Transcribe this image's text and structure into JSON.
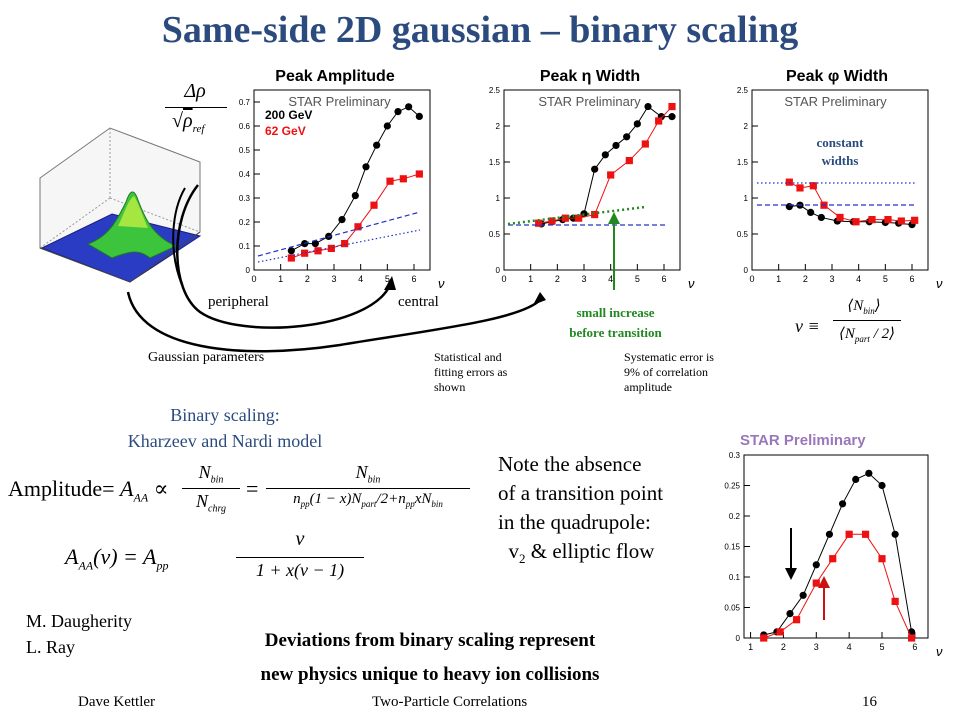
{
  "title": "Same-side 2D gaussian – binary scaling",
  "panels": {
    "amp_title": "Peak Amplitude",
    "eta_title": "Peak η Width",
    "phi_title": "Peak φ Width",
    "star": "STAR Preliminary",
    "star_quad": "STAR Preliminary",
    "legend_200": "200 GeV",
    "legend_62": "62 GeV",
    "nu_label": "ν",
    "constant_widths_1": "constant",
    "constant_widths_2": "widths"
  },
  "labels": {
    "peripheral": "peripheral",
    "central": "central",
    "gaussian_parameters": "Gaussian parameters",
    "small_increase_1": "small increase",
    "small_increase_2": "before transition",
    "stat_errors_1": "Statistical and",
    "stat_errors_2": "fitting errors as",
    "stat_errors_3": "shown",
    "sys_error_1": "Systematic error is",
    "sys_error_2": "9% of correlation",
    "sys_error_3": "amplitude",
    "binary_1": "Binary scaling:",
    "binary_2": "Kharzeev and Nardi model",
    "note_1": "Note the absence",
    "note_2": "of a transition point",
    "note_3": "in the quadrupole:",
    "note_4": "v",
    "note_4_sub": "2",
    "note_4_rest": " & elliptic flow",
    "authors_1": "M. Daugherity",
    "authors_2": "L. Ray",
    "deviations_1": "Deviations from binary scaling represent",
    "deviations_2": "new physics unique to heavy ion collisions"
  },
  "formulas": {
    "drho_num": "Δρ",
    "drho_den": "ρ",
    "drho_sub": "ref",
    "amplitude": "Amplitude",
    "A_AA": "A",
    "A_sub": "AA",
    "N_bin": "N",
    "bin": "bin",
    "N_chrg": "chrg",
    "n_pp": "n",
    "pp": "pp",
    "part": "part",
    "nu_def": "ν ≡",
    "aa_nu": "(ν) = A",
    "x_text": "(1 − x)",
    "den_full": "1 + x(ν − 1)"
  },
  "footer": {
    "author": "Dave Kettler",
    "talk": "Two-Particle Correlations",
    "page": "16"
  },
  "colors": {
    "title": "#2b4b7e",
    "series_200": "#000000",
    "series_62": "#ee1111",
    "guide": "#2233cc",
    "green": "#228822",
    "accent_text": "#2b4b7e"
  },
  "chart_data": [
    {
      "type": "scatter",
      "title": "Peak Amplitude",
      "xlabel": "ν",
      "xlim": [
        0,
        6.6
      ],
      "ylim": [
        0,
        0.75
      ],
      "xticks": [
        0,
        1,
        2,
        3,
        4,
        5,
        6
      ],
      "yticks": [
        0,
        0.1,
        0.2,
        0.3,
        0.4,
        0.5,
        0.6,
        0.7
      ],
      "series": [
        {
          "name": "200 GeV",
          "x": [
            1.4,
            1.9,
            2.3,
            2.8,
            3.3,
            3.8,
            4.2,
            4.6,
            5.0,
            5.4,
            5.8,
            6.2
          ],
          "y": [
            0.08,
            0.11,
            0.11,
            0.14,
            0.21,
            0.31,
            0.43,
            0.52,
            0.6,
            0.66,
            0.68,
            0.64
          ]
        },
        {
          "name": "62 GeV",
          "x": [
            1.4,
            1.9,
            2.4,
            2.9,
            3.4,
            3.9,
            4.5,
            5.1,
            5.6,
            6.2
          ],
          "y": [
            0.05,
            0.07,
            0.08,
            0.09,
            0.11,
            0.18,
            0.27,
            0.37,
            0.38,
            0.4
          ]
        }
      ]
    },
    {
      "type": "scatter",
      "title": "Peak η Width",
      "xlabel": "ν",
      "xlim": [
        0,
        6.6
      ],
      "ylim": [
        0,
        2.5
      ],
      "xticks": [
        0,
        1,
        2,
        3,
        4,
        5,
        6
      ],
      "yticks": [
        0,
        0.5,
        1,
        1.5,
        2,
        2.5
      ],
      "series": [
        {
          "name": "200 GeV",
          "x": [
            1.4,
            1.8,
            2.2,
            2.6,
            3.0,
            3.4,
            3.8,
            4.2,
            4.6,
            5.0,
            5.4,
            5.9,
            6.3
          ],
          "y": [
            0.64,
            0.67,
            0.7,
            0.72,
            0.78,
            1.4,
            1.6,
            1.73,
            1.85,
            2.03,
            2.27,
            2.13,
            2.13
          ]
        },
        {
          "name": "62 GeV",
          "x": [
            1.3,
            1.8,
            2.3,
            2.8,
            3.4,
            4.0,
            4.7,
            5.3,
            5.8,
            6.3
          ],
          "y": [
            0.65,
            0.68,
            0.72,
            0.72,
            0.77,
            1.32,
            1.52,
            1.75,
            2.07,
            2.27
          ]
        }
      ]
    },
    {
      "type": "scatter",
      "title": "Peak φ Width",
      "xlabel": "ν",
      "xlim": [
        0,
        6.6
      ],
      "ylim": [
        0,
        2.5
      ],
      "xticks": [
        0,
        1,
        2,
        3,
        4,
        5,
        6
      ],
      "yticks": [
        0,
        0.5,
        1,
        1.5,
        2,
        2.5
      ],
      "series": [
        {
          "name": "200 GeV",
          "x": [
            1.4,
            1.8,
            2.2,
            2.6,
            3.2,
            3.8,
            4.4,
            5.0,
            5.5,
            6.0
          ],
          "y": [
            0.88,
            0.9,
            0.8,
            0.73,
            0.68,
            0.67,
            0.67,
            0.66,
            0.65,
            0.63
          ]
        },
        {
          "name": "62 GeV",
          "x": [
            1.4,
            1.8,
            2.3,
            2.7,
            3.3,
            3.9,
            4.5,
            5.1,
            5.6,
            6.1
          ],
          "y": [
            1.22,
            1.14,
            1.17,
            0.9,
            0.73,
            0.67,
            0.7,
            0.7,
            0.68,
            0.69
          ]
        }
      ]
    },
    {
      "type": "scatter",
      "title": "STAR Preliminary",
      "xlabel": "ν",
      "xlim": [
        0.8,
        6.4
      ],
      "ylim": [
        0,
        0.3
      ],
      "xticks": [
        1,
        2,
        3,
        4,
        5,
        6
      ],
      "yticks": [
        0,
        0.05,
        0.1,
        0.15,
        0.2,
        0.25,
        0.3
      ],
      "series": [
        {
          "name": "200 GeV",
          "x": [
            1.4,
            1.8,
            2.2,
            2.6,
            3.0,
            3.4,
            3.8,
            4.2,
            4.6,
            5.0,
            5.4,
            5.9
          ],
          "y": [
            0.005,
            0.01,
            0.04,
            0.07,
            0.12,
            0.17,
            0.22,
            0.26,
            0.27,
            0.25,
            0.17,
            0.01
          ]
        },
        {
          "name": "62 GeV",
          "x": [
            1.4,
            1.9,
            2.4,
            3.0,
            3.5,
            4.0,
            4.5,
            5.0,
            5.4,
            5.9
          ],
          "y": [
            0.0,
            0.01,
            0.03,
            0.09,
            0.13,
            0.17,
            0.17,
            0.13,
            0.06,
            0.0
          ]
        }
      ]
    }
  ]
}
